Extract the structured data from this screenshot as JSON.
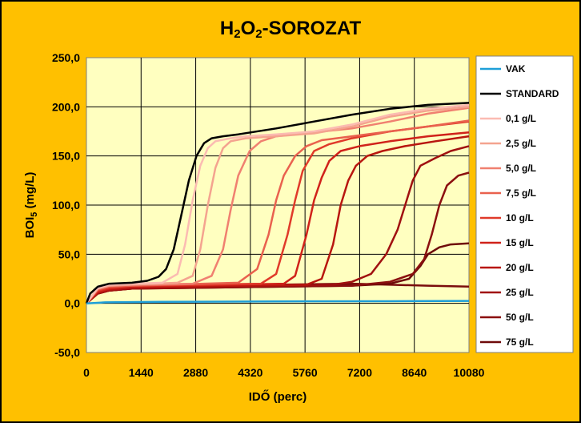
{
  "chart_data": {
    "type": "line",
    "title_main": "H",
    "title_sub1": "2",
    "title_mid": "O",
    "title_sub2": "2",
    "title_end": "-SOROZAT",
    "xlabel": "IDŐ (perc)",
    "ylabel_main": "BOI",
    "ylabel_sub": "5",
    "ylabel_end": " (mg/L)",
    "xlim": [
      0,
      10080
    ],
    "ylim": [
      -50,
      250
    ],
    "xticks": [
      "0",
      "1440",
      "2880",
      "4320",
      "5760",
      "7200",
      "8640",
      "10080"
    ],
    "yticks": [
      "-50,0",
      "0,0",
      "50,0",
      "100,0",
      "150,0",
      "200,0",
      "250,0"
    ],
    "grid": true,
    "legend_position": "right",
    "series": [
      {
        "name": "VAK",
        "color": "#1E9FD8",
        "x": [
          0,
          500,
          2000,
          5000,
          8000,
          10080
        ],
        "y": [
          0,
          1,
          1.5,
          2,
          2.2,
          2.5
        ]
      },
      {
        "name": "STANDARD",
        "color": "#000000",
        "x": [
          0,
          100,
          300,
          600,
          1200,
          1600,
          1900,
          2100,
          2300,
          2500,
          2700,
          2900,
          3100,
          3300,
          3600,
          4000,
          5000,
          6000,
          7000,
          8000,
          9000,
          10080
        ],
        "y": [
          0,
          10,
          17,
          20,
          21,
          23,
          27,
          35,
          55,
          90,
          125,
          150,
          163,
          168,
          170,
          172,
          178,
          185,
          192,
          198,
          202,
          204
        ]
      },
      {
        "name": "0,1 g/L",
        "color": "#FBBBB2",
        "x": [
          0,
          300,
          600,
          1200,
          2000,
          2400,
          2600,
          2800,
          3000,
          3200,
          3400,
          3800,
          4200,
          5000,
          6000,
          7000,
          8000,
          9000,
          10080
        ],
        "y": [
          0,
          16,
          19,
          20,
          21,
          30,
          60,
          105,
          140,
          158,
          165,
          168,
          170,
          172,
          175,
          182,
          192,
          198,
          202
        ]
      },
      {
        "name": "2,5 g/L",
        "color": "#F4A38F",
        "x": [
          0,
          300,
          600,
          1200,
          2400,
          2800,
          3000,
          3200,
          3400,
          3600,
          3800,
          4200,
          5000,
          6000,
          7000,
          8000,
          9000,
          10080
        ],
        "y": [
          0,
          15,
          18,
          19,
          21,
          28,
          55,
          100,
          138,
          158,
          165,
          168,
          170,
          173,
          180,
          190,
          196,
          200
        ]
      },
      {
        "name": "5,0 g/L",
        "color": "#F08070",
        "x": [
          0,
          300,
          600,
          1200,
          2800,
          3300,
          3600,
          3800,
          4000,
          4300,
          4600,
          5000,
          6000,
          7000,
          8000,
          9000,
          10080
        ],
        "y": [
          0,
          15,
          18,
          19,
          20,
          28,
          55,
          95,
          130,
          155,
          165,
          170,
          174,
          178,
          185,
          193,
          199
        ]
      },
      {
        "name": "7,5 g/L",
        "color": "#E9614E",
        "x": [
          0,
          300,
          600,
          1200,
          4000,
          4500,
          4800,
          5000,
          5200,
          5500,
          5800,
          6200,
          7000,
          8000,
          9000,
          10080
        ],
        "y": [
          0,
          14,
          17,
          18,
          21,
          35,
          70,
          105,
          130,
          150,
          160,
          166,
          170,
          175,
          180,
          186
        ]
      },
      {
        "name": "10 g/L",
        "color": "#E03A2A",
        "x": [
          0,
          300,
          600,
          1200,
          4600,
          5000,
          5300,
          5500,
          5700,
          6000,
          6400,
          7000,
          8000,
          9000,
          10080
        ],
        "y": [
          0,
          13,
          16,
          18,
          20,
          30,
          70,
          105,
          135,
          155,
          162,
          168,
          175,
          180,
          185
        ]
      },
      {
        "name": "15 g/L",
        "color": "#D0221A",
        "x": [
          0,
          300,
          600,
          1200,
          5200,
          5500,
          5800,
          6000,
          6200,
          6400,
          6700,
          7200,
          8000,
          9000,
          10080
        ],
        "y": [
          0,
          12,
          15,
          17,
          20,
          28,
          70,
          105,
          128,
          145,
          155,
          160,
          165,
          170,
          174
        ]
      },
      {
        "name": "20 g/L",
        "color": "#B8160F",
        "x": [
          0,
          300,
          600,
          1200,
          5800,
          6200,
          6500,
          6700,
          6900,
          7100,
          7400,
          7800,
          8400,
          9200,
          10080
        ],
        "y": [
          0,
          11,
          14,
          16,
          19,
          25,
          60,
          100,
          125,
          140,
          150,
          155,
          160,
          165,
          170
        ]
      },
      {
        "name": "25 g/L",
        "color": "#A01010",
        "x": [
          0,
          300,
          600,
          1200,
          6500,
          7000,
          7500,
          7900,
          8200,
          8400,
          8600,
          8800,
          9200,
          9600,
          10080
        ],
        "y": [
          0,
          10,
          13,
          15,
          19,
          22,
          30,
          50,
          75,
          100,
          125,
          140,
          148,
          155,
          160
        ]
      },
      {
        "name": "50 g/L",
        "color": "#8B0F0F",
        "x": [
          0,
          300,
          600,
          1200,
          7000,
          8000,
          8600,
          8900,
          9100,
          9300,
          9500,
          9800,
          10080
        ],
        "y": [
          0,
          10,
          13,
          15,
          18,
          22,
          30,
          45,
          70,
          100,
          120,
          130,
          133
        ]
      },
      {
        "name": "75 g/L",
        "color": "#6E0A0A",
        "x": [
          0,
          300,
          600,
          1200,
          7000,
          8000,
          8500,
          8800,
          9000,
          9300,
          9600,
          10080
        ],
        "y": [
          0,
          10,
          13,
          15,
          18,
          20,
          25,
          38,
          50,
          57,
          60,
          61
        ]
      }
    ],
    "extra_flat_series": [
      {
        "color": "#7A0C0C",
        "x": [
          0,
          300,
          600,
          1200,
          3000,
          5000,
          7000,
          8000,
          9000,
          10080
        ],
        "y": [
          0,
          12,
          15,
          17,
          18,
          19,
          20,
          19,
          18,
          17
        ]
      }
    ]
  }
}
